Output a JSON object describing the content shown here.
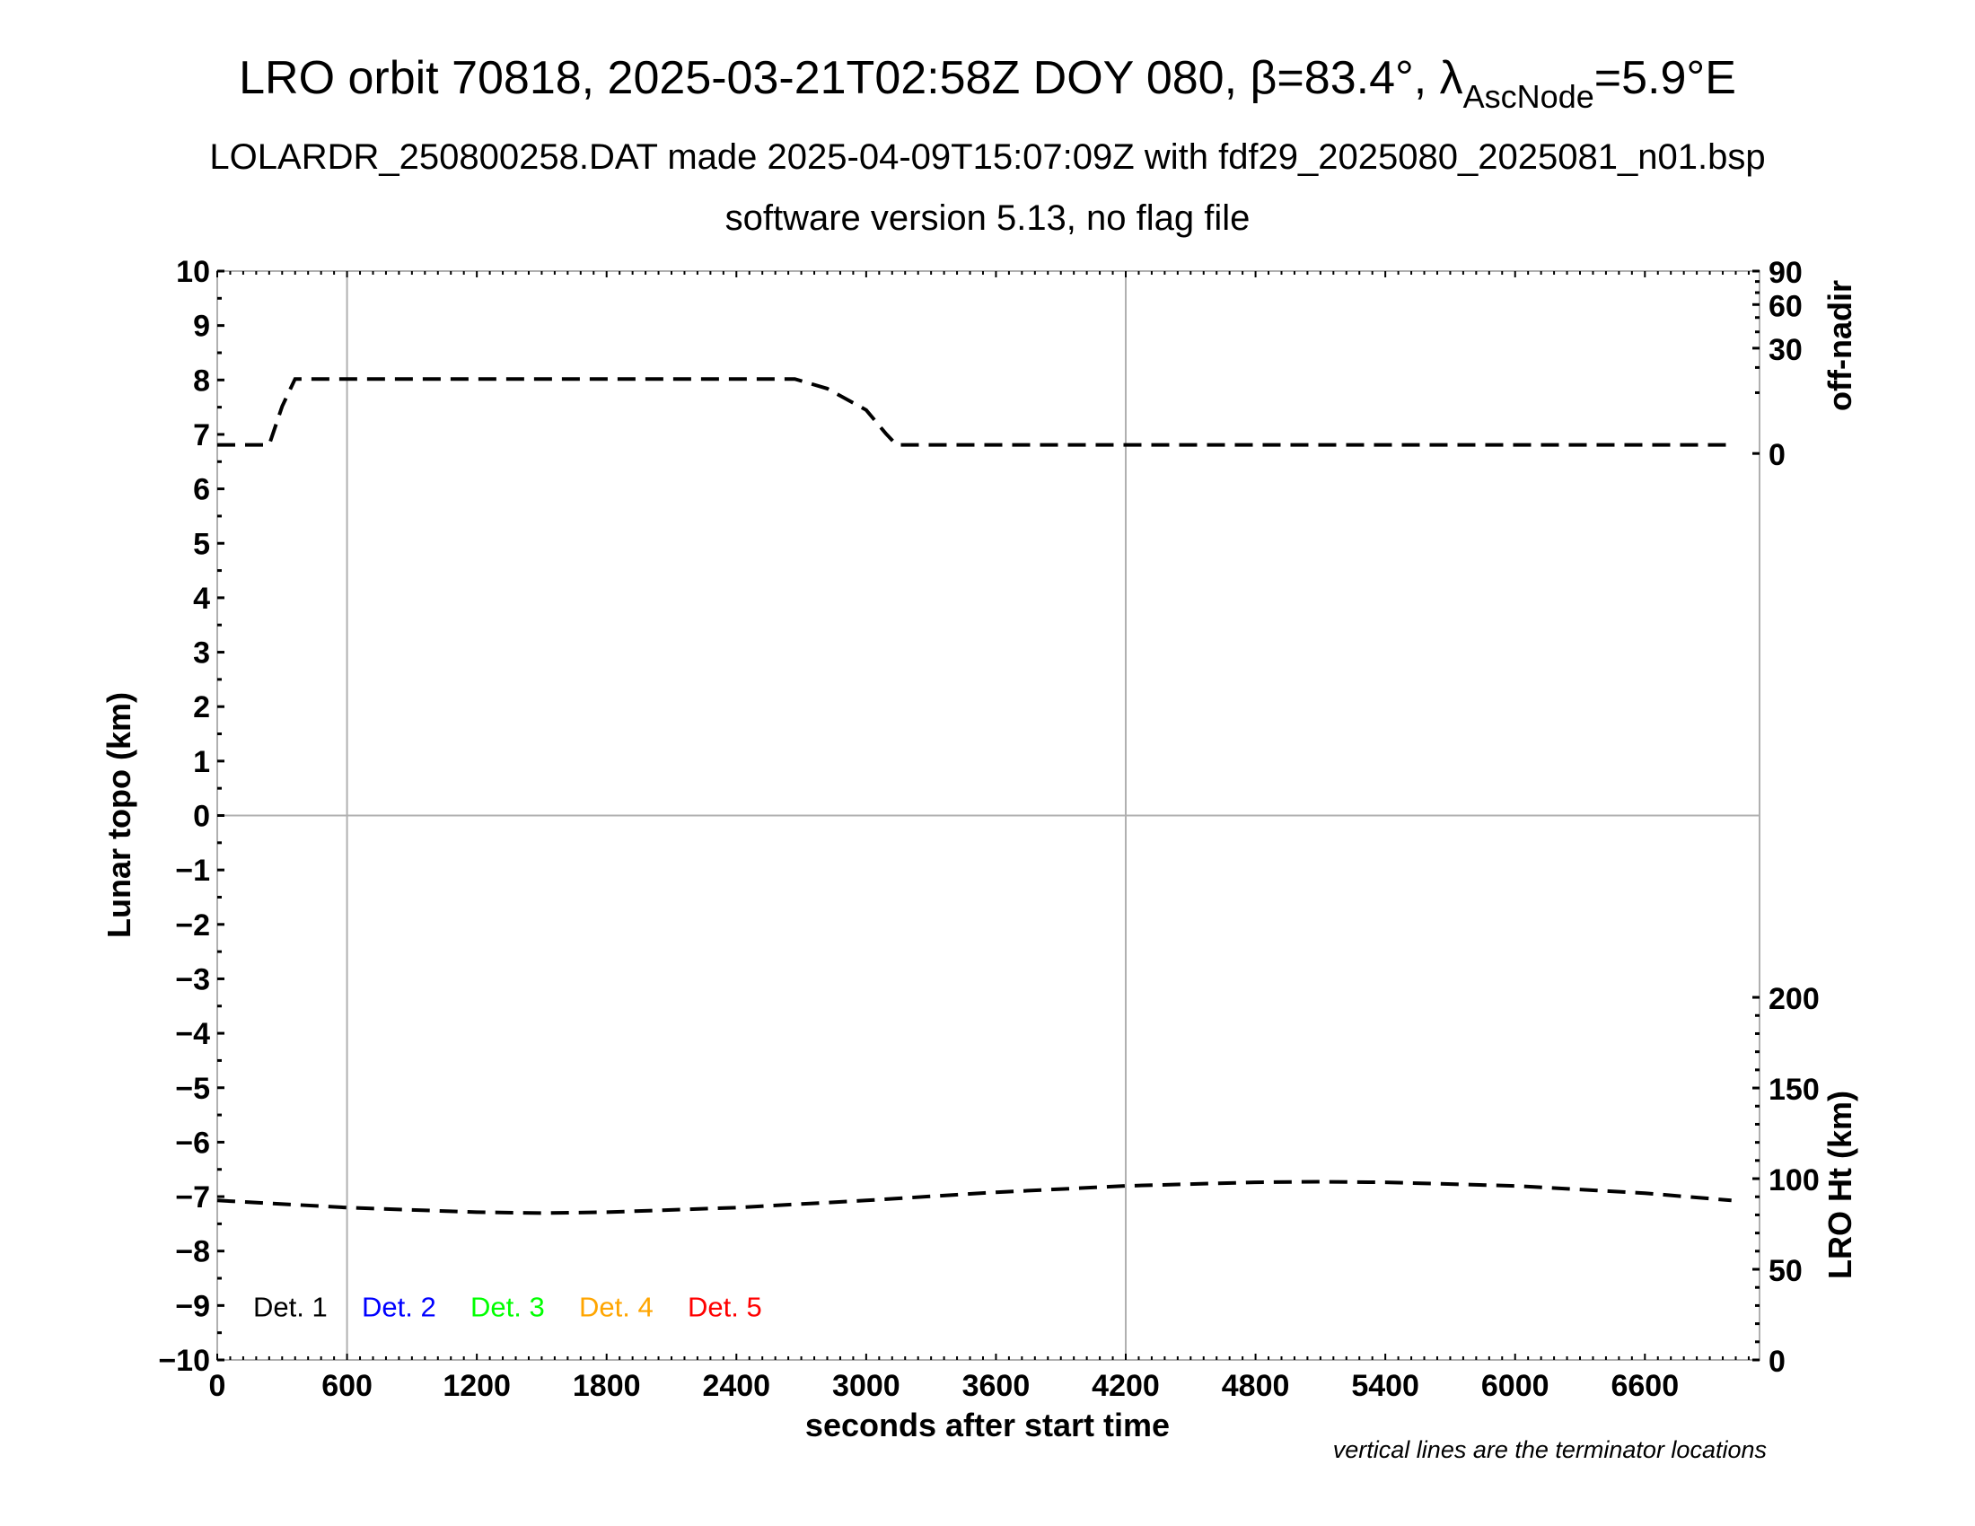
{
  "title": {
    "main_prefix": "LRO orbit 70818, 2025-03-21T02:58Z DOY 080, β=83.4°, λ",
    "main_subscript": "AscNode",
    "main_suffix": "=5.9°E",
    "line2": "LOLARDR_250800258.DAT made 2025-04-09T15:07:09Z with fdf29_2025080_2025081_n01.bsp",
    "line3": "software version 5.13, no flag file"
  },
  "note": "vertical lines are the terminator locations",
  "chart_data": {
    "type": "line",
    "xlabel": "seconds after start time",
    "ylabel": "Lunar topo (km)",
    "xlim": [
      0,
      7130
    ],
    "ylim": [
      -10,
      10
    ],
    "x_ticks": [
      0,
      600,
      1200,
      1800,
      2400,
      3000,
      3600,
      4200,
      4800,
      5400,
      6000,
      6600
    ],
    "y_ticks": [
      10,
      9,
      8,
      7,
      6,
      5,
      4,
      3,
      2,
      1,
      0,
      -1,
      -2,
      -3,
      -4,
      -5,
      -6,
      -7,
      -8,
      -9,
      -10
    ],
    "grid": "terminator vertical lines and y=0 line",
    "terminators": [
      600,
      4200
    ],
    "right_axes": [
      {
        "label": "off-nadir",
        "scale": "sqrt",
        "range": [
          0,
          90
        ],
        "ticks": [
          0,
          30,
          60,
          90
        ]
      },
      {
        "label": "LRO Ht (km)",
        "range": [
          0,
          200
        ],
        "ticks": [
          0,
          50,
          100,
          150,
          200
        ]
      }
    ],
    "series": [
      {
        "axis": "off-nadir",
        "style": "dashed",
        "color": "#000000",
        "x": [
          0,
          240,
          300,
          360,
          600,
          1200,
          1800,
          2400,
          2670,
          2820,
          3000,
          3090,
          3140,
          3600,
          4200,
          4800,
          5400,
          6000,
          6600,
          7000
        ],
        "y": [
          0.2,
          0.2,
          6,
          15,
          15,
          15,
          15,
          15,
          15,
          11.4,
          5.1,
          1.1,
          0.2,
          0.2,
          0.2,
          0.2,
          0.2,
          0.2,
          0.2,
          0.2
        ]
      },
      {
        "axis": "LRO Ht (km)",
        "style": "dashed",
        "color": "#000000",
        "x": [
          0,
          600,
          1200,
          1500,
          1800,
          2400,
          3000,
          3600,
          4200,
          4800,
          5100,
          5400,
          6000,
          6600,
          7000
        ],
        "y": [
          88,
          84,
          81.5,
          81,
          81.5,
          84,
          88,
          92.5,
          96,
          98,
          98.3,
          98,
          96,
          92,
          88
        ]
      }
    ],
    "legend": {
      "placement": "bottom-left",
      "entries": [
        {
          "label": "Det. 1",
          "color": "#000000"
        },
        {
          "label": "Det. 2",
          "color": "#0000ff"
        },
        {
          "label": "Det. 3",
          "color": "#00ff00"
        },
        {
          "label": "Det. 4",
          "color": "#ffa500"
        },
        {
          "label": "Det. 5",
          "color": "#ff0000"
        }
      ]
    }
  }
}
